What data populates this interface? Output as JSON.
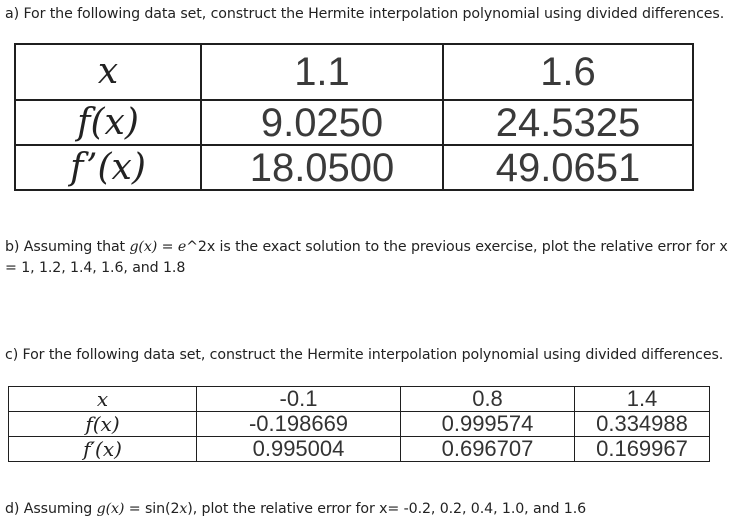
{
  "part_a": {
    "text": "a) For the following data set, construct the Hermite interpolation polynomial using divided differences."
  },
  "table1": {
    "rows": [
      {
        "label": "x",
        "values": [
          "1.1",
          "1.6"
        ]
      },
      {
        "label": "f(x)",
        "values": [
          "9.0250",
          "24.5325"
        ]
      },
      {
        "label": "f’(x)",
        "values": [
          "18.0500",
          "49.0651"
        ]
      }
    ]
  },
  "part_b": {
    "prefix": "b) Assuming that ",
    "func": "g(x)",
    "eq": " = ",
    "expr": "e",
    "suffix": "^2x is the exact solution to the previous exercise, plot the relative error for x = 1, 1.2, 1.4, 1.6, and 1.8"
  },
  "part_c": {
    "text": "c) For the following data set, construct the Hermite interpolation polynomial using divided differences."
  },
  "table2": {
    "rows": [
      {
        "label": "x",
        "values": [
          "-0.1",
          "0.8",
          "1.4"
        ]
      },
      {
        "label": "f(x)",
        "values": [
          "-0.198669",
          "0.999574",
          "0.334988"
        ]
      },
      {
        "label": "f′(x)",
        "values": [
          "0.995004",
          "0.696707",
          "0.169967"
        ]
      }
    ]
  },
  "part_d": {
    "prefix": "d) Assuming ",
    "func": "g(x)",
    "eq": " = sin(2",
    "var": "x",
    "suffix": "), plot the relative error for x= -0.2, 0.2, 0.4, 1.0, and 1.6"
  }
}
